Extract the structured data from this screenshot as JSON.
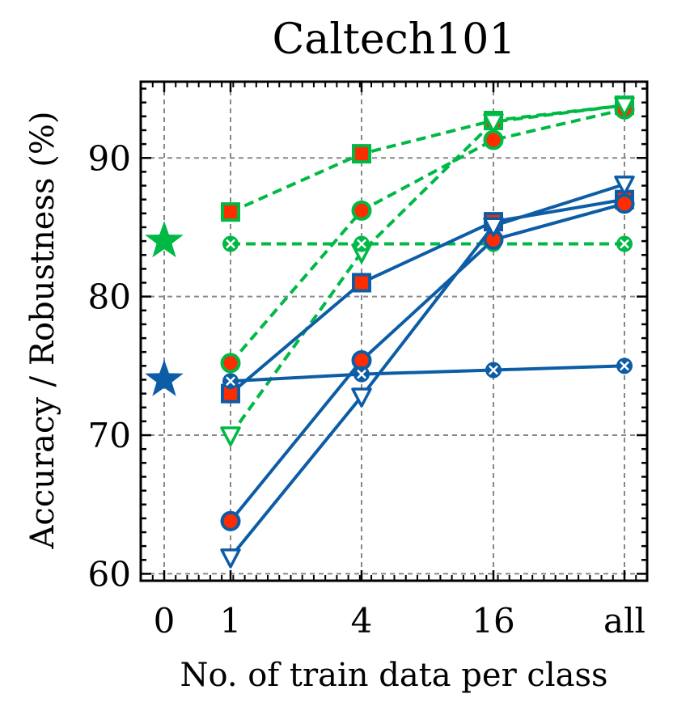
{
  "chart_data": {
    "type": "line",
    "title": "Caltech101",
    "xlabel": "No. of train data per class",
    "ylabel": "Accuracy / Robustness (%)",
    "x_ticks": [
      "0",
      "1",
      "4",
      "16",
      "all"
    ],
    "y_ticks": [
      60,
      70,
      80,
      90
    ],
    "ylim": [
      59.5,
      95.5
    ],
    "grid": true,
    "colors": {
      "green": "#00b945",
      "blue": "#0c5da5",
      "red": "#ff2c00"
    },
    "zero_shot": [
      {
        "name": "zero-shot (green)",
        "color": "green",
        "value": 84.0
      },
      {
        "name": "zero-shot (blue)",
        "color": "blue",
        "value": 74.0
      }
    ],
    "series": [
      {
        "name": "green-square",
        "color": "green",
        "dash": true,
        "marker": "square",
        "values": [
          86.1,
          90.3,
          92.7,
          93.8
        ]
      },
      {
        "name": "green-circle",
        "color": "green",
        "dash": true,
        "marker": "circle",
        "values": [
          75.2,
          86.2,
          91.3,
          93.5
        ]
      },
      {
        "name": "green-triangle",
        "color": "green",
        "dash": true,
        "marker": "triangle",
        "values": [
          70.0,
          83.2,
          92.6,
          93.8
        ]
      },
      {
        "name": "green-x",
        "color": "green",
        "dash": true,
        "marker": "x",
        "values": [
          83.8,
          83.8,
          83.8,
          83.8
        ]
      },
      {
        "name": "blue-square",
        "color": "blue",
        "dash": false,
        "marker": "square",
        "values": [
          73.0,
          81.0,
          85.4,
          87.0
        ]
      },
      {
        "name": "blue-circle",
        "color": "blue",
        "dash": false,
        "marker": "circle",
        "values": [
          63.8,
          75.4,
          84.1,
          86.7
        ]
      },
      {
        "name": "blue-triangle",
        "color": "blue",
        "dash": false,
        "marker": "triangle",
        "values": [
          61.2,
          72.8,
          85.1,
          88.1
        ]
      },
      {
        "name": "blue-x",
        "color": "blue",
        "dash": false,
        "marker": "x",
        "values": [
          73.9,
          74.4,
          74.7,
          75.0
        ]
      }
    ]
  }
}
